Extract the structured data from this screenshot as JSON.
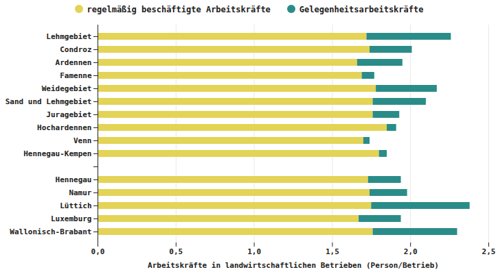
{
  "chart_data": {
    "type": "bar",
    "orientation": "horizontal",
    "stacked": true,
    "grid": true,
    "legend": "top",
    "xlabel": "Arbeitskräfte in landwirtschaftlichen Betrieben (Person/Betrieb)",
    "categories": [
      "Lehmgebiet",
      "Condroz",
      "Ardennen",
      "Famenne",
      "Weidegebiet",
      "Sand und Lehmgebiet",
      "Juragebiet",
      "Hochardennen",
      "Venn",
      "Hennegau-Kempen",
      null,
      "Hennegau",
      "Namur",
      "Lüttich",
      "Luxemburg",
      "Wallonisch-Brabant"
    ],
    "series": [
      {
        "name": "regelmäßig beschäftigte Arbeitskräfte",
        "color": "#e3d356",
        "values": [
          1.72,
          1.74,
          1.66,
          1.69,
          1.78,
          1.76,
          1.76,
          1.85,
          1.7,
          1.8,
          null,
          1.73,
          1.74,
          1.75,
          1.67,
          1.76
        ]
      },
      {
        "name": "Gelegenheitsarbeitskräfte",
        "color": "#2a8c88",
        "values": [
          0.54,
          0.27,
          0.29,
          0.08,
          0.39,
          0.34,
          0.17,
          0.06,
          0.04,
          0.05,
          null,
          0.21,
          0.24,
          0.63,
          0.27,
          0.54
        ]
      }
    ],
    "xlim": [
      0,
      2.5
    ],
    "xticks": [
      {
        "value": 0,
        "label": "0,0"
      },
      {
        "value": 0.5,
        "label": "0,5"
      },
      {
        "value": 1,
        "label": "1,0"
      },
      {
        "value": 1.5,
        "label": "1,5"
      },
      {
        "value": 2,
        "label": "2,0"
      },
      {
        "value": 2.5,
        "label": "2,5"
      }
    ]
  }
}
